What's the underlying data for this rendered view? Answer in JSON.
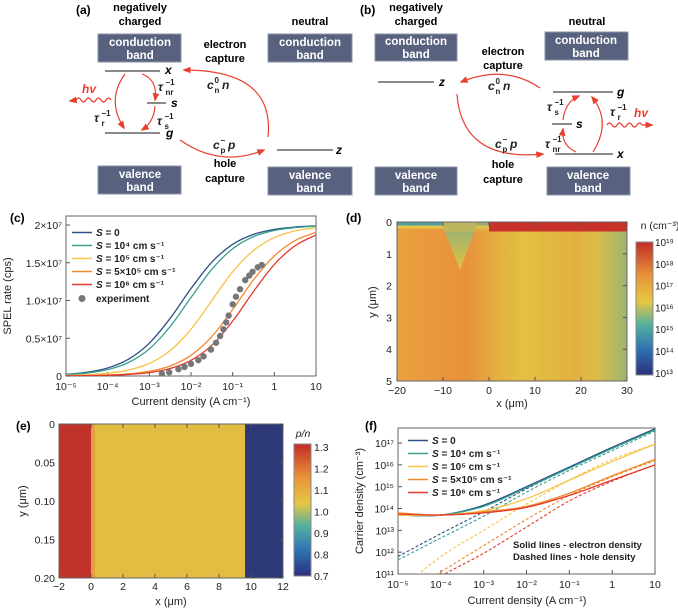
{
  "panels": {
    "a": "(a)",
    "b": "(b)",
    "c": "(c)",
    "d": "(d)",
    "e": "(e)",
    "f": "(f)"
  },
  "diagram": {
    "state_negative": [
      "negatively",
      "charged"
    ],
    "state_neutral": "neutral",
    "conduction_band": [
      "conduction",
      "band"
    ],
    "valence_band": [
      "valence",
      "band"
    ],
    "electron_capture": [
      "electron",
      "capture"
    ],
    "hole_capture": [
      "hole",
      "capture"
    ],
    "photon": "hv",
    "levels": {
      "x": "x",
      "s": "s",
      "g": "g",
      "z": "z"
    },
    "rates": {
      "tau": "τ",
      "inv": "−1",
      "nr": "nr",
      "r": "r",
      "s": "s",
      "c": "c",
      "n_sub": "n",
      "n_sup": "0",
      "n": "n",
      "p_sub": "p",
      "p_sup": "−",
      "p": "p"
    },
    "colors": {
      "band": "#58627f",
      "arrow": "#e8402e"
    }
  },
  "chart_data": [
    {
      "panel": "c",
      "type": "line",
      "xlabel": "Current density (A cm⁻¹)",
      "ylabel": "SPEL rate (cps)",
      "xscale": "log",
      "xlim": [
        1e-05,
        10
      ],
      "ylim": [
        0,
        20000000.0
      ],
      "y_unit": 10000000.0,
      "x_ticks": [
        {
          "v": -5,
          "label": "10⁻⁵"
        },
        {
          "v": -4,
          "label": "10⁻⁴"
        },
        {
          "v": -3,
          "label": "10⁻³"
        },
        {
          "v": -2,
          "label": "10⁻²"
        },
        {
          "v": -1,
          "label": "10⁻¹"
        },
        {
          "v": 0,
          "label": "1"
        },
        {
          "v": 1,
          "label": "10"
        }
      ],
      "y_ticks": [
        {
          "v": 0,
          "label": "0"
        },
        {
          "v": 0.5,
          "label": "0.5×10⁷"
        },
        {
          "v": 1.0,
          "label": "1.0×10⁷"
        },
        {
          "v": 1.5,
          "label": "1.5×10⁷"
        },
        {
          "v": 2.0,
          "label": "2×10⁷"
        }
      ],
      "log10_x": [
        -5,
        -4.5,
        -4,
        -3.5,
        -3,
        -2.5,
        -2,
        -1.5,
        -1,
        -0.5,
        0,
        0.5,
        1
      ],
      "series": [
        {
          "var": "S",
          "rest": " = 0",
          "color": "#2c4f84",
          "values": [
            0.022,
            0.049,
            0.106,
            0.222,
            0.435,
            0.764,
            1.159,
            1.508,
            1.744,
            1.876,
            1.942,
            1.974,
            1.988
          ]
        },
        {
          "var": "S",
          "rest": " = 10⁴ cm s⁻¹",
          "color": "#3a9f8f",
          "values": [
            0.018,
            0.039,
            0.085,
            0.179,
            0.359,
            0.656,
            1.04,
            1.413,
            1.686,
            1.846,
            1.928,
            1.966,
            1.984
          ]
        },
        {
          "var": "S",
          "rest": " = 10⁵ cm s⁻¹",
          "color": "#f6c445",
          "values": [
            0.007,
            0.016,
            0.036,
            0.078,
            0.167,
            0.336,
            0.62,
            1.0,
            1.38,
            1.664,
            1.834,
            1.922,
            1.964
          ]
        },
        {
          "var": "S",
          "rest": " = 5×10⁵ cm s⁻¹",
          "color": "#f28b2c",
          "values": [
            0.003,
            0.006,
            0.013,
            0.028,
            0.062,
            0.133,
            0.274,
            0.522,
            0.881,
            1.273,
            1.591,
            1.794,
            1.902
          ]
        },
        {
          "var": "S",
          "rest": " = 10⁶ cm s⁻¹",
          "color": "#e23a2c",
          "values": [
            0.002,
            0.004,
            0.009,
            0.021,
            0.045,
            0.099,
            0.207,
            0.408,
            0.727,
            1.119,
            1.478,
            1.726,
            1.867
          ]
        }
      ],
      "experiment": {
        "label": "experiment",
        "color": "#777777",
        "x": [
          0.002,
          0.003,
          0.005,
          0.007,
          0.01,
          0.015,
          0.02,
          0.03,
          0.04,
          0.05,
          0.06,
          0.07,
          0.08,
          0.1,
          0.12,
          0.15,
          0.2,
          0.25,
          0.3,
          0.4,
          0.5
        ],
        "y": [
          0.03,
          0.05,
          0.09,
          0.12,
          0.16,
          0.21,
          0.26,
          0.35,
          0.44,
          0.53,
          0.62,
          0.71,
          0.8,
          0.95,
          1.05,
          1.15,
          1.27,
          1.33,
          1.38,
          1.44,
          1.47
        ]
      },
      "legend": "top-left"
    },
    {
      "panel": "d",
      "type": "heatmap",
      "xlabel": "x (μm)",
      "ylabel": "y (μm)",
      "xlim": [
        -20,
        30
      ],
      "ylim": [
        0,
        5
      ],
      "x_ticks": [
        "−20",
        "−10",
        "0",
        "10",
        "20",
        "30"
      ],
      "x_tick_values": [
        -20,
        -10,
        0,
        10,
        20,
        30
      ],
      "y_ticks": [
        "0",
        "1",
        "2",
        "3",
        "4",
        "5"
      ],
      "colorbar": {
        "title": "n (cm⁻³)",
        "scale": "log",
        "range": [
          10000000000000.0,
          1e+19
        ],
        "ticks": [
          "10¹⁹",
          "10¹⁸",
          "10¹⁷",
          "10¹⁶",
          "10¹⁵",
          "10¹⁴",
          "10¹³"
        ]
      }
    },
    {
      "panel": "e",
      "type": "heatmap",
      "xlabel": "x (μm)",
      "ylabel": "y (μm)",
      "xlim": [
        -2,
        12
      ],
      "ylim": [
        0,
        0.2
      ],
      "x_ticks": [
        "−2",
        "0",
        "2",
        "4",
        "6",
        "8",
        "10",
        "12"
      ],
      "x_tick_values": [
        -2,
        0,
        2,
        4,
        6,
        8,
        10,
        12
      ],
      "y_ticks": [
        "0",
        "0.05",
        "0.10",
        "0.15",
        "0.20"
      ],
      "y_tick_values": [
        0,
        0.05,
        0.1,
        0.15,
        0.2
      ],
      "colorbar": {
        "title": "p/n",
        "range": [
          0.7,
          1.3
        ],
        "ticks": [
          "1.3",
          "1.2",
          "1.1",
          "1.0",
          "0.9",
          "0.8",
          "0.7"
        ]
      }
    },
    {
      "panel": "f",
      "type": "line",
      "xlabel": "Current density (A cm⁻¹)",
      "ylabel": "Carrier density (cm⁻³)",
      "xscale": "log",
      "yscale": "log",
      "xlim": [
        1e-05,
        10
      ],
      "ylim": [
        100000000000.0,
        5e+17
      ],
      "x_ticks": [
        {
          "v": -5,
          "label": "10⁻⁵"
        },
        {
          "v": -4,
          "label": "10⁻⁴"
        },
        {
          "v": -3,
          "label": "10⁻³"
        },
        {
          "v": -2,
          "label": "10⁻²"
        },
        {
          "v": -1,
          "label": "10⁻¹"
        },
        {
          "v": 0,
          "label": "1"
        },
        {
          "v": 1,
          "label": "10"
        }
      ],
      "y_ticks": [
        {
          "v": 11,
          "label": "10¹¹"
        },
        {
          "v": 12,
          "label": "10¹²"
        },
        {
          "v": 13,
          "label": "10¹³"
        },
        {
          "v": 14,
          "label": "10¹⁴"
        },
        {
          "v": 15,
          "label": "10¹⁵"
        },
        {
          "v": 16,
          "label": "10¹⁶"
        },
        {
          "v": 17,
          "label": "10¹⁷"
        }
      ],
      "log10_x": [
        -5,
        -4,
        -3,
        -2,
        -1,
        0,
        1
      ],
      "series": [
        {
          "var": "S",
          "rest": " = 0",
          "color": "#2c4f84",
          "electron_log10": [
            13.7,
            13.7,
            14.15,
            15.0,
            15.9,
            16.8,
            17.65
          ],
          "hole_log10": [
            11.8,
            12.85,
            13.85,
            14.9,
            15.85,
            16.75,
            17.6
          ]
        },
        {
          "var": "S",
          "rest": " = 10⁴ cm s⁻¹",
          "color": "#3a9f8f",
          "electron_log10": [
            13.7,
            13.7,
            14.1,
            14.95,
            15.85,
            16.75,
            17.6
          ],
          "hole_log10": [
            11.65,
            12.65,
            13.65,
            14.75,
            15.75,
            16.65,
            17.55
          ]
        },
        {
          "var": "S",
          "rest": " = 10⁵ cm s⁻¹",
          "color": "#f6c445",
          "electron_log10": [
            13.7,
            13.7,
            13.9,
            14.45,
            15.3,
            16.15,
            16.95
          ],
          "hole_log10": [
            10.2,
            11.8,
            13.0,
            14.2,
            15.3,
            16.25,
            16.95
          ]
        },
        {
          "var": "S",
          "rest": " = 5×10⁵ cm s⁻¹",
          "color": "#f28b2c",
          "electron_log10": [
            13.8,
            13.7,
            13.85,
            14.1,
            14.7,
            15.5,
            16.25
          ],
          "hole_log10": [
            9.9,
            11.1,
            12.3,
            13.5,
            14.6,
            15.45,
            16.2
          ]
        },
        {
          "var": "S",
          "rest": " = 10⁶ cm s⁻¹",
          "color": "#e23a2c",
          "electron_log10": [
            13.75,
            13.7,
            13.8,
            14.05,
            14.6,
            15.3,
            16.0
          ],
          "hole_log10": [
            9.7,
            10.9,
            11.95,
            13.15,
            14.35,
            15.25,
            16.0
          ]
        }
      ],
      "annotations": [
        "Solid lines - electron density",
        "Dashed lines - hole density"
      ],
      "legend": "top-left"
    }
  ]
}
